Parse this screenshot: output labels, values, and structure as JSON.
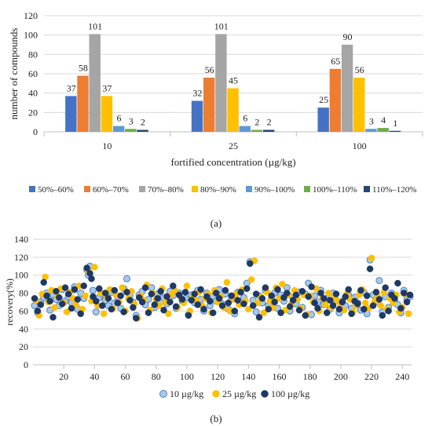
{
  "panel_labels": {
    "a": "(a)",
    "b": "(b)"
  },
  "colors": {
    "ranges": [
      "#4472c4",
      "#ed7d31",
      "#a5a5a5",
      "#ffc000",
      "#5b9bd5",
      "#70ad47",
      "#264478"
    ],
    "scatter": {
      "10": "#a9c8ea",
      "10_edge": "#4f81bd",
      "25": "#ffc000",
      "100": "#1f3864"
    }
  },
  "chart_data": [
    {
      "type": "bar",
      "title": "",
      "xlabel": "fortified concentration (µg/kg)",
      "ylabel": "number of compounds",
      "ylim": [
        0,
        120
      ],
      "yticks": [
        "0",
        "20",
        "40",
        "60",
        "80",
        "100",
        "120"
      ],
      "categories": [
        "10",
        "25",
        "100"
      ],
      "series": [
        {
          "name": "50%–60%",
          "values": [
            37,
            32,
            25
          ]
        },
        {
          "name": "60%–70%",
          "values": [
            58,
            56,
            65
          ]
        },
        {
          "name": "70%–80%",
          "values": [
            101,
            101,
            90
          ]
        },
        {
          "name": "80%–90%",
          "values": [
            37,
            45,
            56
          ]
        },
        {
          "name": "90%–100%",
          "values": [
            6,
            6,
            3
          ]
        },
        {
          "name": "100%–110%",
          "values": [
            3,
            2,
            4
          ]
        },
        {
          "name": "110%–120%",
          "values": [
            2,
            2,
            1
          ]
        }
      ],
      "legend": "bottom",
      "grid": "horizontal"
    },
    {
      "type": "scatter",
      "title": "",
      "xlabel": "",
      "ylabel": "recovery(%)",
      "xlim": [
        0,
        246
      ],
      "ylim": [
        0,
        140
      ],
      "xticks": [
        "20",
        "40",
        "60",
        "80",
        "100",
        "120",
        "140",
        "160",
        "180",
        "200",
        "220",
        "240"
      ],
      "yticks": [
        "0",
        "20",
        "40",
        "60",
        "80",
        "100",
        "120",
        "140"
      ],
      "legend": "bottom",
      "grid": "horizontal",
      "series": [
        {
          "name": "10 µg/kg",
          "x": [
            1,
            3,
            5,
            7,
            9,
            11,
            13,
            15,
            17,
            19,
            21,
            23,
            25,
            27,
            29,
            31,
            33,
            35,
            36,
            37,
            39,
            41,
            43,
            45,
            47,
            49,
            51,
            53,
            55,
            57,
            59,
            61,
            63,
            65,
            67,
            69,
            71,
            73,
            75,
            77,
            79,
            81,
            83,
            85,
            87,
            89,
            91,
            93,
            95,
            97,
            99,
            101,
            103,
            105,
            107,
            109,
            111,
            113,
            115,
            117,
            119,
            121,
            123,
            125,
            127,
            129,
            131,
            133,
            135,
            137,
            139,
            141,
            143,
            145,
            147,
            149,
            151,
            153,
            155,
            157,
            159,
            161,
            163,
            165,
            167,
            169,
            171,
            173,
            175,
            177,
            179,
            181,
            183,
            185,
            187,
            189,
            191,
            193,
            195,
            197,
            199,
            201,
            203,
            205,
            207,
            209,
            211,
            213,
            215,
            217,
            219,
            221,
            223,
            225,
            227,
            229,
            231,
            233,
            235,
            237,
            239,
            241,
            243,
            245
          ],
          "y": [
            66,
            58,
            70,
            75,
            80,
            61,
            78,
            73,
            66,
            84,
            71,
            76,
            69,
            87,
            62,
            80,
            74,
            106,
            100,
            110,
            83,
            59,
            75,
            79,
            72,
            66,
            81,
            69,
            76,
            63,
            85,
            96,
            77,
            70,
            55,
            78,
            82,
            67,
            73,
            86,
            64,
            79,
            70,
            75,
            68,
            82,
            77,
            63,
            80,
            71,
            74,
            56,
            78,
            69,
            83,
            73,
            60,
            80,
            66,
            76,
            71,
            84,
            68,
            79,
            62,
            74,
            57,
            81,
            70,
            75,
            91,
            115,
            72,
            59,
            77,
            69,
            83,
            66,
            74,
            80,
            63,
            78,
            71,
            86,
            60,
            75,
            68,
            81,
            64,
            79,
            91,
            56,
            77,
            70,
            83,
            67,
            74,
            62,
            80,
            72,
            58,
            71,
            66,
            78,
            63,
            75,
            69,
            61,
            81,
            57,
            117,
            78,
            70,
            94,
            59,
            76,
            64,
            80,
            72,
            67,
            58,
            83,
            73,
            76
          ]
        },
        {
          "name": "25 µg/kg",
          "x": [
            2,
            4,
            6,
            8,
            10,
            12,
            14,
            16,
            18,
            20,
            22,
            24,
            26,
            28,
            30,
            32,
            34,
            36,
            38,
            40,
            42,
            44,
            46,
            48,
            50,
            52,
            54,
            56,
            58,
            60,
            62,
            64,
            66,
            68,
            70,
            72,
            74,
            76,
            78,
            80,
            82,
            84,
            86,
            88,
            90,
            92,
            94,
            96,
            98,
            100,
            102,
            104,
            106,
            108,
            110,
            112,
            114,
            116,
            118,
            120,
            122,
            124,
            126,
            128,
            130,
            132,
            134,
            136,
            138,
            140,
            142,
            144,
            146,
            148,
            150,
            152,
            154,
            156,
            158,
            160,
            162,
            164,
            166,
            168,
            170,
            172,
            174,
            176,
            178,
            180,
            182,
            184,
            186,
            188,
            190,
            192,
            194,
            196,
            198,
            200,
            202,
            204,
            206,
            208,
            210,
            212,
            214,
            216,
            218,
            220,
            222,
            224,
            226,
            228,
            230,
            232,
            234,
            236,
            238,
            240,
            242,
            244
          ],
          "y": [
            72,
            55,
            79,
            98,
            70,
            83,
            64,
            76,
            85,
            69,
            59,
            81,
            74,
            67,
            88,
            62,
            77,
            104,
            71,
            109,
            66,
            80,
            57,
            75,
            84,
            63,
            78,
            70,
            86,
            60,
            74,
            82,
            68,
            52,
            77,
            72,
            89,
            61,
            80,
            73,
            66,
            85,
            70,
            57,
            78,
            83,
            64,
            75,
            69,
            88,
            60,
            76,
            72,
            81,
            66,
            74,
            79,
            58,
            83,
            70,
            76,
            64,
            92,
            60,
            73,
            79,
            67,
            84,
            71,
            62,
            95,
            116,
            69,
            76,
            58,
            81,
            71,
            64,
            86,
            74,
            90,
            61,
            78,
            68,
            83,
            73,
            63,
            78,
            56,
            77,
            70,
            85,
            60,
            74,
            67,
            80,
            64,
            76,
            71,
            68,
            61,
            79,
            73,
            59,
            66,
            78,
            84,
            69,
            63,
            119,
            71,
            76,
            66,
            81,
            62,
            74,
            69,
            78,
            59,
            64,
            79,
            57
          ]
        },
        {
          "name": "100 µg/kg",
          "x": [
            1,
            3,
            5,
            7,
            9,
            11,
            13,
            15,
            17,
            19,
            21,
            23,
            25,
            27,
            29,
            31,
            33,
            35,
            37,
            38,
            39,
            41,
            43,
            45,
            47,
            49,
            51,
            53,
            55,
            57,
            59,
            61,
            63,
            65,
            67,
            69,
            71,
            73,
            75,
            77,
            79,
            81,
            83,
            85,
            87,
            89,
            91,
            93,
            95,
            97,
            99,
            101,
            103,
            105,
            107,
            109,
            111,
            113,
            115,
            117,
            119,
            121,
            123,
            125,
            127,
            129,
            131,
            133,
            135,
            137,
            139,
            141,
            143,
            145,
            147,
            149,
            151,
            153,
            155,
            157,
            159,
            161,
            163,
            165,
            167,
            169,
            171,
            173,
            175,
            177,
            179,
            181,
            183,
            185,
            187,
            189,
            191,
            193,
            195,
            197,
            199,
            201,
            203,
            205,
            207,
            209,
            211,
            213,
            215,
            217,
            219,
            221,
            223,
            225,
            227,
            229,
            231,
            233,
            235,
            237,
            239,
            241,
            243,
            245
          ],
          "y": [
            74,
            60,
            67,
            92,
            77,
            71,
            53,
            82,
            75,
            68,
            86,
            79,
            63,
            84,
            73,
            57,
            88,
            108,
            102,
            96,
            76,
            71,
            85,
            66,
            80,
            74,
            62,
            83,
            69,
            77,
            59,
            81,
            72,
            64,
            52,
            75,
            70,
            86,
            58,
            79,
            67,
            74,
            82,
            61,
            76,
            70,
            88,
            65,
            78,
            73,
            81,
            55,
            72,
            79,
            67,
            84,
            62,
            76,
            71,
            58,
            80,
            74,
            66,
            83,
            69,
            77,
            60,
            72,
            81,
            68,
            85,
            113,
            66,
            79,
            53,
            74,
            86,
            62,
            77,
            70,
            84,
            58,
            75,
            80,
            65,
            72,
            78,
            61,
            82,
            55,
            76,
            87,
            69,
            63,
            80,
            74,
            58,
            72,
            66,
            79,
            62,
            70,
            76,
            84,
            57,
            71,
            68,
            83,
            62,
            77,
            107,
            66,
            81,
            73,
            55,
            86,
            60,
            78,
            74,
            91,
            63,
            80,
            70,
            78
          ]
        }
      ]
    }
  ]
}
